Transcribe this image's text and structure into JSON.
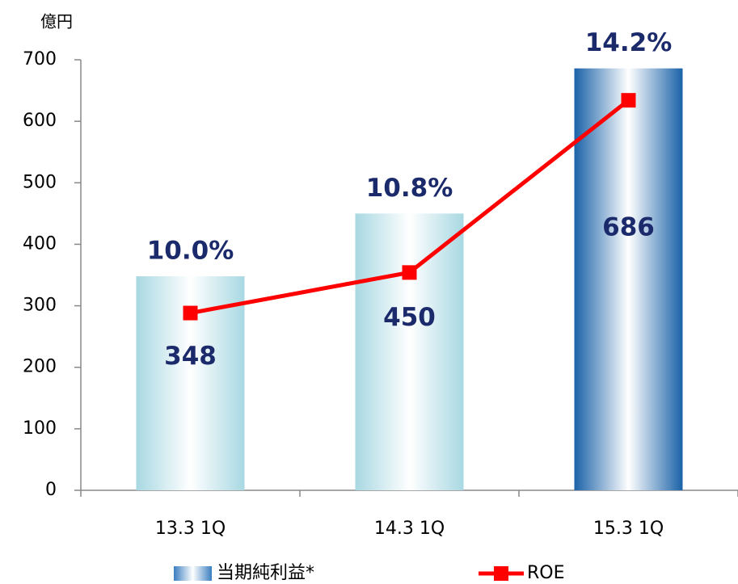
{
  "chart_data": {
    "type": "bar",
    "y_unit_label": "億円",
    "categories": [
      "13.3 1Q",
      "14.3 1Q",
      "15.3 1Q"
    ],
    "series": [
      {
        "name": "当期純利益*",
        "type": "bar",
        "color": "#a8d8e2",
        "colors": [
          "#a8d8e2",
          "#a8d8e2",
          "#1a62a8"
        ],
        "values": [
          348,
          450,
          686
        ]
      },
      {
        "name": "ROE",
        "type": "line",
        "axis": "y2",
        "color": "#ff0000",
        "values": [
          10.0,
          10.8,
          14.2
        ],
        "value_labels": [
          "10.0%",
          "10.8%",
          "14.2%"
        ]
      }
    ],
    "ylim": [
      0,
      700
    ],
    "yticks": [
      0,
      100,
      200,
      300,
      400,
      500,
      600,
      700
    ],
    "y2lim": [
      6.5,
      15
    ]
  }
}
